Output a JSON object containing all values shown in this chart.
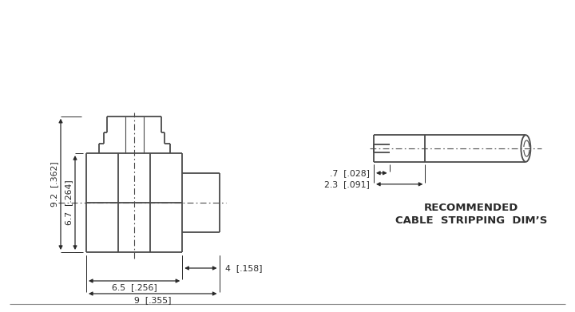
{
  "bg_color": "#ffffff",
  "line_color": "#4a4a4a",
  "line_width": 1.3,
  "thin_line": 0.8,
  "text_color": "#2a2a2a",
  "title_line1": "RECOMMENDED",
  "title_line2": "CABLE  STRIPPING  DIM’S",
  "dims_left": {
    "height_92": "9.2  [.362]",
    "height_67": "6.7  [.264]",
    "width_4": "4  [.158]",
    "width_65": "6.5  [.256]",
    "width_9": "9  [.355]"
  },
  "dims_right": {
    "width_07": ".7  [.028]",
    "width_23": "2.3  [.091]"
  }
}
